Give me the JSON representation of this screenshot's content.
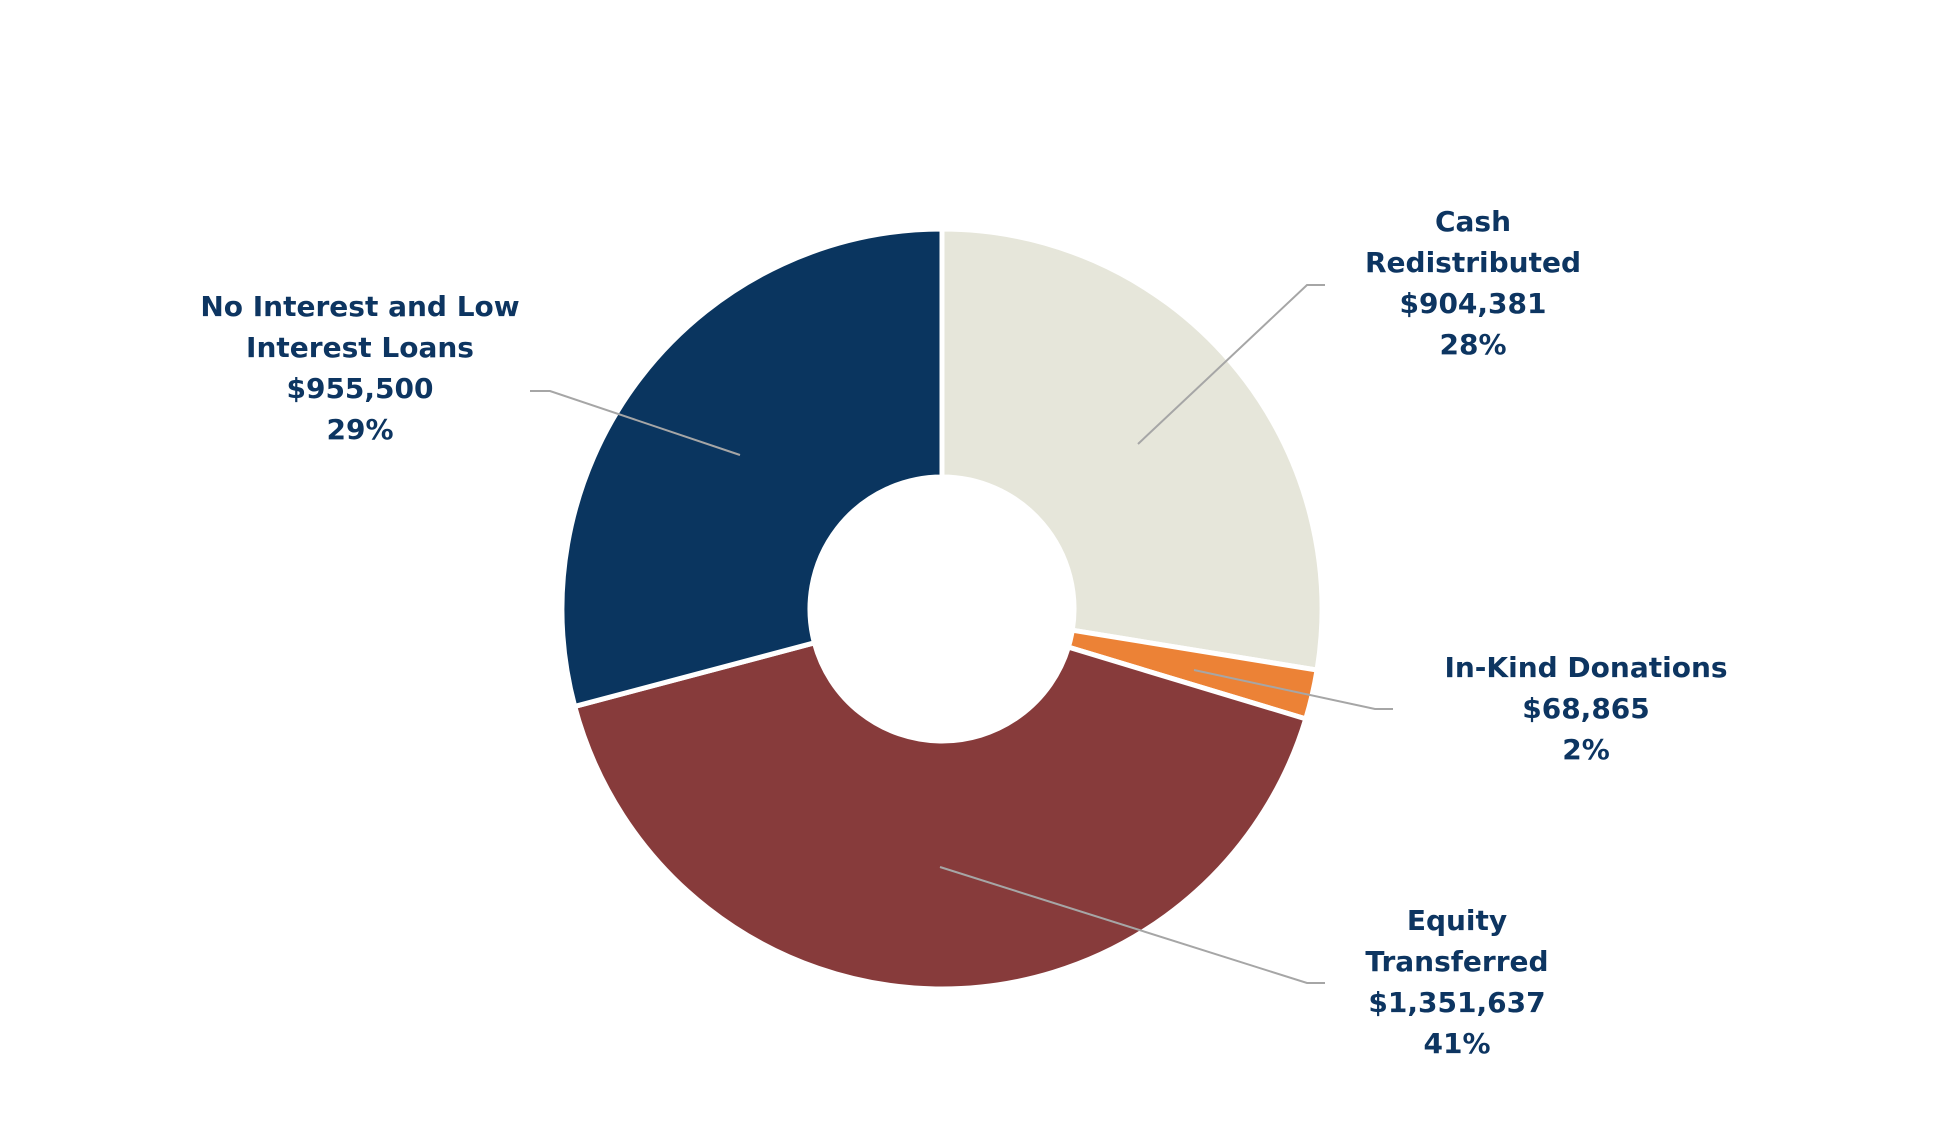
{
  "chart_data": {
    "type": "donut",
    "categories": [
      "Cash Redistributed",
      "In-Kind Donations",
      "Equity Transferred",
      "No Interest and Low Interest Loans"
    ],
    "values": [
      904381,
      68865,
      1351637,
      955500
    ],
    "value_labels": [
      "$904,381",
      "$68,865",
      "$1,351,637",
      "$955,500"
    ],
    "percent_labels": [
      "28%",
      "2%",
      "41%",
      "29%"
    ],
    "colors": [
      "#e6e6da",
      "#ec8236",
      "#873b3b",
      "#0a355f"
    ]
  }
}
